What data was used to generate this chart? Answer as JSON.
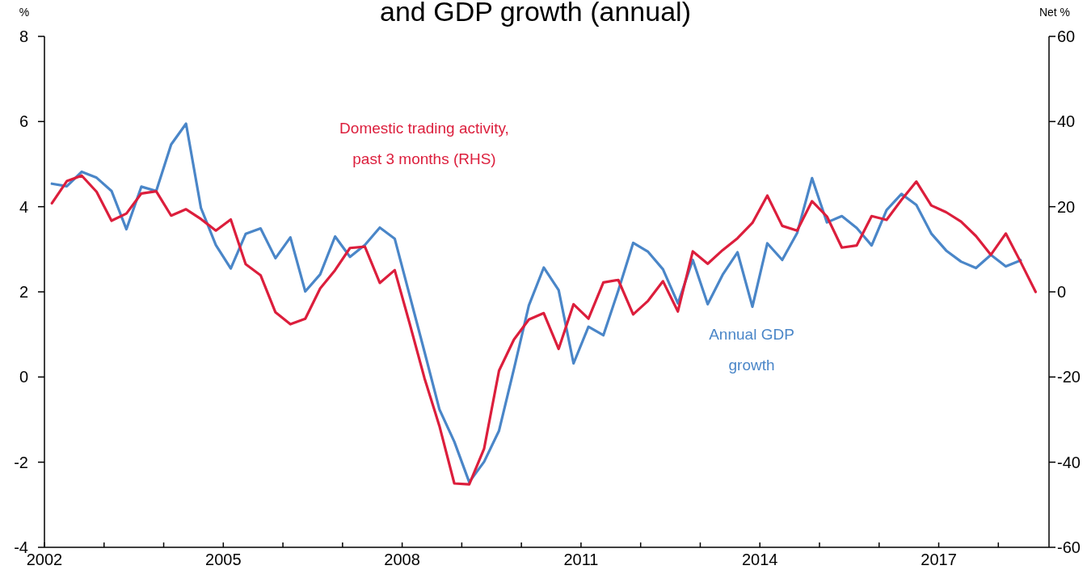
{
  "chart_data": {
    "type": "line",
    "title": "and GDP growth (annual)",
    "ylabel": "%",
    "y2label": "Net %",
    "xlim": [
      2002,
      2018.85
    ],
    "xticks": [
      2002,
      {
        "value": 2003,
        "label": null
      },
      {
        "value": 2004,
        "label": null
      },
      2005,
      {
        "value": 2006,
        "label": null
      },
      {
        "value": 2007,
        "label": null
      },
      2008,
      {
        "value": 2009,
        "label": null
      },
      {
        "value": 2010,
        "label": null
      },
      2011,
      {
        "value": 2012,
        "label": null
      },
      {
        "value": 2013,
        "label": null
      },
      2014,
      {
        "value": 2015,
        "label": null
      },
      {
        "value": 2016,
        "label": null
      },
      2017,
      {
        "value": 2018,
        "label": null
      }
    ],
    "ylim": [
      -4,
      8
    ],
    "yticks": [
      -4,
      -2,
      0,
      2,
      4,
      6,
      8
    ],
    "y2lim": [
      -60,
      60
    ],
    "y2ticks": [
      -60,
      -40,
      -20,
      0,
      20,
      40,
      60
    ],
    "grid": false,
    "legend": false,
    "line_style": "solid",
    "marker": "none",
    "series": [
      {
        "name": "Annual GDP growth",
        "color": "#4a86c8",
        "x": [
          2002.125,
          2002.375,
          2002.625,
          2002.875,
          2003.125,
          2003.375,
          2003.625,
          2003.875,
          2004.125,
          2004.375,
          2004.625,
          2004.875,
          2005.125,
          2005.375,
          2005.625,
          2005.875,
          2006.125,
          2006.375,
          2006.625,
          2006.875,
          2007.125,
          2007.375,
          2007.625,
          2007.875,
          2008.125,
          2008.375,
          2008.625,
          2008.875,
          2009.125,
          2009.375,
          2009.625,
          2009.875,
          2010.125,
          2010.375,
          2010.625,
          2010.875,
          2011.125,
          2011.375,
          2011.625,
          2011.875,
          2012.125,
          2012.375,
          2012.625,
          2012.875,
          2013.125,
          2013.375,
          2013.625,
          2013.875,
          2014.125,
          2014.375,
          2014.625,
          2014.875,
          2015.125,
          2015.375,
          2015.625,
          2015.875,
          2016.125,
          2016.375,
          2016.625,
          2016.875,
          2017.125,
          2017.375,
          2017.625,
          2017.875,
          2018.125,
          2018.375
        ],
        "values": [
          4.54,
          4.48,
          4.82,
          4.68,
          4.37,
          3.47,
          4.47,
          4.37,
          5.46,
          5.95,
          3.97,
          3.1,
          2.55,
          3.36,
          3.49,
          2.79,
          3.28,
          2.01,
          2.41,
          3.3,
          2.82,
          3.1,
          3.51,
          3.25,
          1.92,
          0.59,
          -0.76,
          -1.52,
          -2.47,
          -1.99,
          -1.26,
          0.19,
          1.68,
          2.57,
          2.04,
          0.32,
          1.18,
          0.98,
          2.03,
          3.15,
          2.94,
          2.53,
          1.73,
          2.75,
          1.71,
          2.4,
          2.93,
          1.65,
          3.14,
          2.75,
          3.38,
          4.67,
          3.63,
          3.78,
          3.5,
          3.09,
          3.92,
          4.3,
          4.04,
          3.37,
          2.97,
          2.71,
          2.56,
          2.87,
          2.6,
          2.74
        ]
      },
      {
        "name": "Domestic trading activity, past 3 months (RHS)",
        "color": "#dc1e3c",
        "axis": "y2",
        "x": [
          2002.125,
          2002.375,
          2002.625,
          2002.875,
          2003.125,
          2003.375,
          2003.625,
          2003.875,
          2004.125,
          2004.375,
          2004.625,
          2004.875,
          2005.125,
          2005.375,
          2005.625,
          2005.875,
          2006.125,
          2006.375,
          2006.625,
          2006.875,
          2007.125,
          2007.375,
          2007.625,
          2007.875,
          2008.125,
          2008.375,
          2008.625,
          2008.875,
          2009.125,
          2009.375,
          2009.625,
          2009.875,
          2010.125,
          2010.375,
          2010.625,
          2010.875,
          2011.125,
          2011.375,
          2011.625,
          2011.875,
          2012.125,
          2012.375,
          2012.625,
          2012.875,
          2013.125,
          2013.375,
          2013.625,
          2013.875,
          2014.125,
          2014.375,
          2014.625,
          2014.875,
          2015.125,
          2015.375,
          2015.625,
          2015.875,
          2016.125,
          2016.375,
          2016.625,
          2016.875,
          2017.125,
          2017.375,
          2017.625,
          2017.875,
          2018.125,
          2018.375,
          2018.625
        ],
        "values": [
          20.8,
          26,
          27.3,
          23.5,
          16.7,
          18.4,
          23.1,
          23.6,
          17.9,
          19.4,
          17.1,
          14.4,
          17,
          6.5,
          3.9,
          -4.8,
          -7.6,
          -6.3,
          0.8,
          5.1,
          10.3,
          10.6,
          2.1,
          5.1,
          -7.4,
          -20.3,
          -31.5,
          -45,
          -45.2,
          -36.8,
          -18.5,
          -11.2,
          -6.5,
          -5,
          -13.4,
          -2.9,
          -6.3,
          2.2,
          2.8,
          -5.3,
          -2.1,
          2.5,
          -4.6,
          9.5,
          6.6,
          9.8,
          12.6,
          16.2,
          22.6,
          15.5,
          14.4,
          21.3,
          17.7,
          10.4,
          10.9,
          17.8,
          16.9,
          21.6,
          25.9,
          20.3,
          18.7,
          16.5,
          13.1,
          8.7,
          13.7,
          7,
          0
        ]
      }
    ]
  }
}
